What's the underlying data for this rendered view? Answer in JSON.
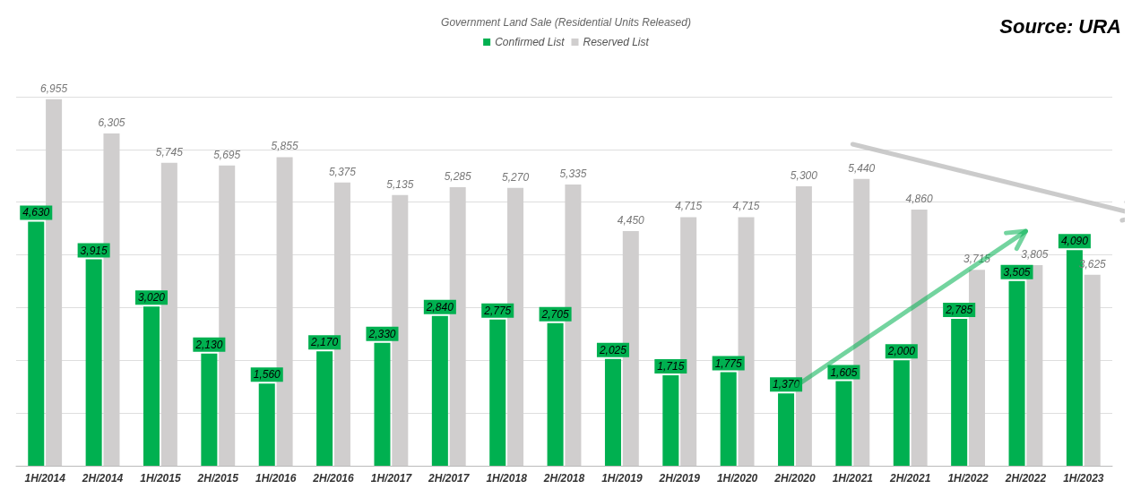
{
  "chart_data": {
    "type": "bar",
    "title": "Government Land Sale (Residential Units Released)",
    "categories": [
      "1H/2014",
      "2H/2014",
      "1H/2015",
      "2H/2015",
      "1H/2016",
      "2H/2016",
      "1H/2017",
      "2H/2017",
      "1H/2018",
      "2H/2018",
      "1H/2019",
      "2H/2019",
      "1H/2020",
      "2H/2020",
      "1H/2021",
      "2H/2021",
      "1H/2022",
      "2H/2022",
      "1H/2023"
    ],
    "series": [
      {
        "name": "Confirmed List",
        "color": "#00b050",
        "values": [
          4630,
          3915,
          3020,
          2130,
          1560,
          2170,
          2330,
          2840,
          2775,
          2705,
          2025,
          1715,
          1775,
          1370,
          1605,
          2000,
          2785,
          3505,
          4090
        ],
        "value_labels": [
          "4,630",
          "3,915",
          "3,020",
          "2,130",
          "1,560",
          "2,170",
          "2,330",
          "2,840",
          "2,775",
          "2,705",
          "2,025",
          "1,715",
          "1,775",
          "1,370",
          "1,605",
          "2,000",
          "2,785",
          "3,505",
          "4,090"
        ]
      },
      {
        "name": "Reserved List",
        "color": "#d0cece",
        "values": [
          6955,
          6305,
          5745,
          5695,
          5855,
          5375,
          5135,
          5285,
          5270,
          5335,
          4450,
          4715,
          4715,
          5300,
          5440,
          4860,
          3715,
          3805,
          3625
        ],
        "value_labels": [
          "6,955",
          "6,305",
          "5,745",
          "5,695",
          "5,855",
          "5,375",
          "5,135",
          "5,285",
          "5,270",
          "5,335",
          "4,450",
          "4,715",
          "4,715",
          "5,300",
          "5,440",
          "4,860",
          "3,715",
          "3,805",
          "3,625"
        ]
      }
    ],
    "tick_labels": "x",
    "grid": "y",
    "legend": "top",
    "annotations": [
      "Source: URA"
    ]
  }
}
